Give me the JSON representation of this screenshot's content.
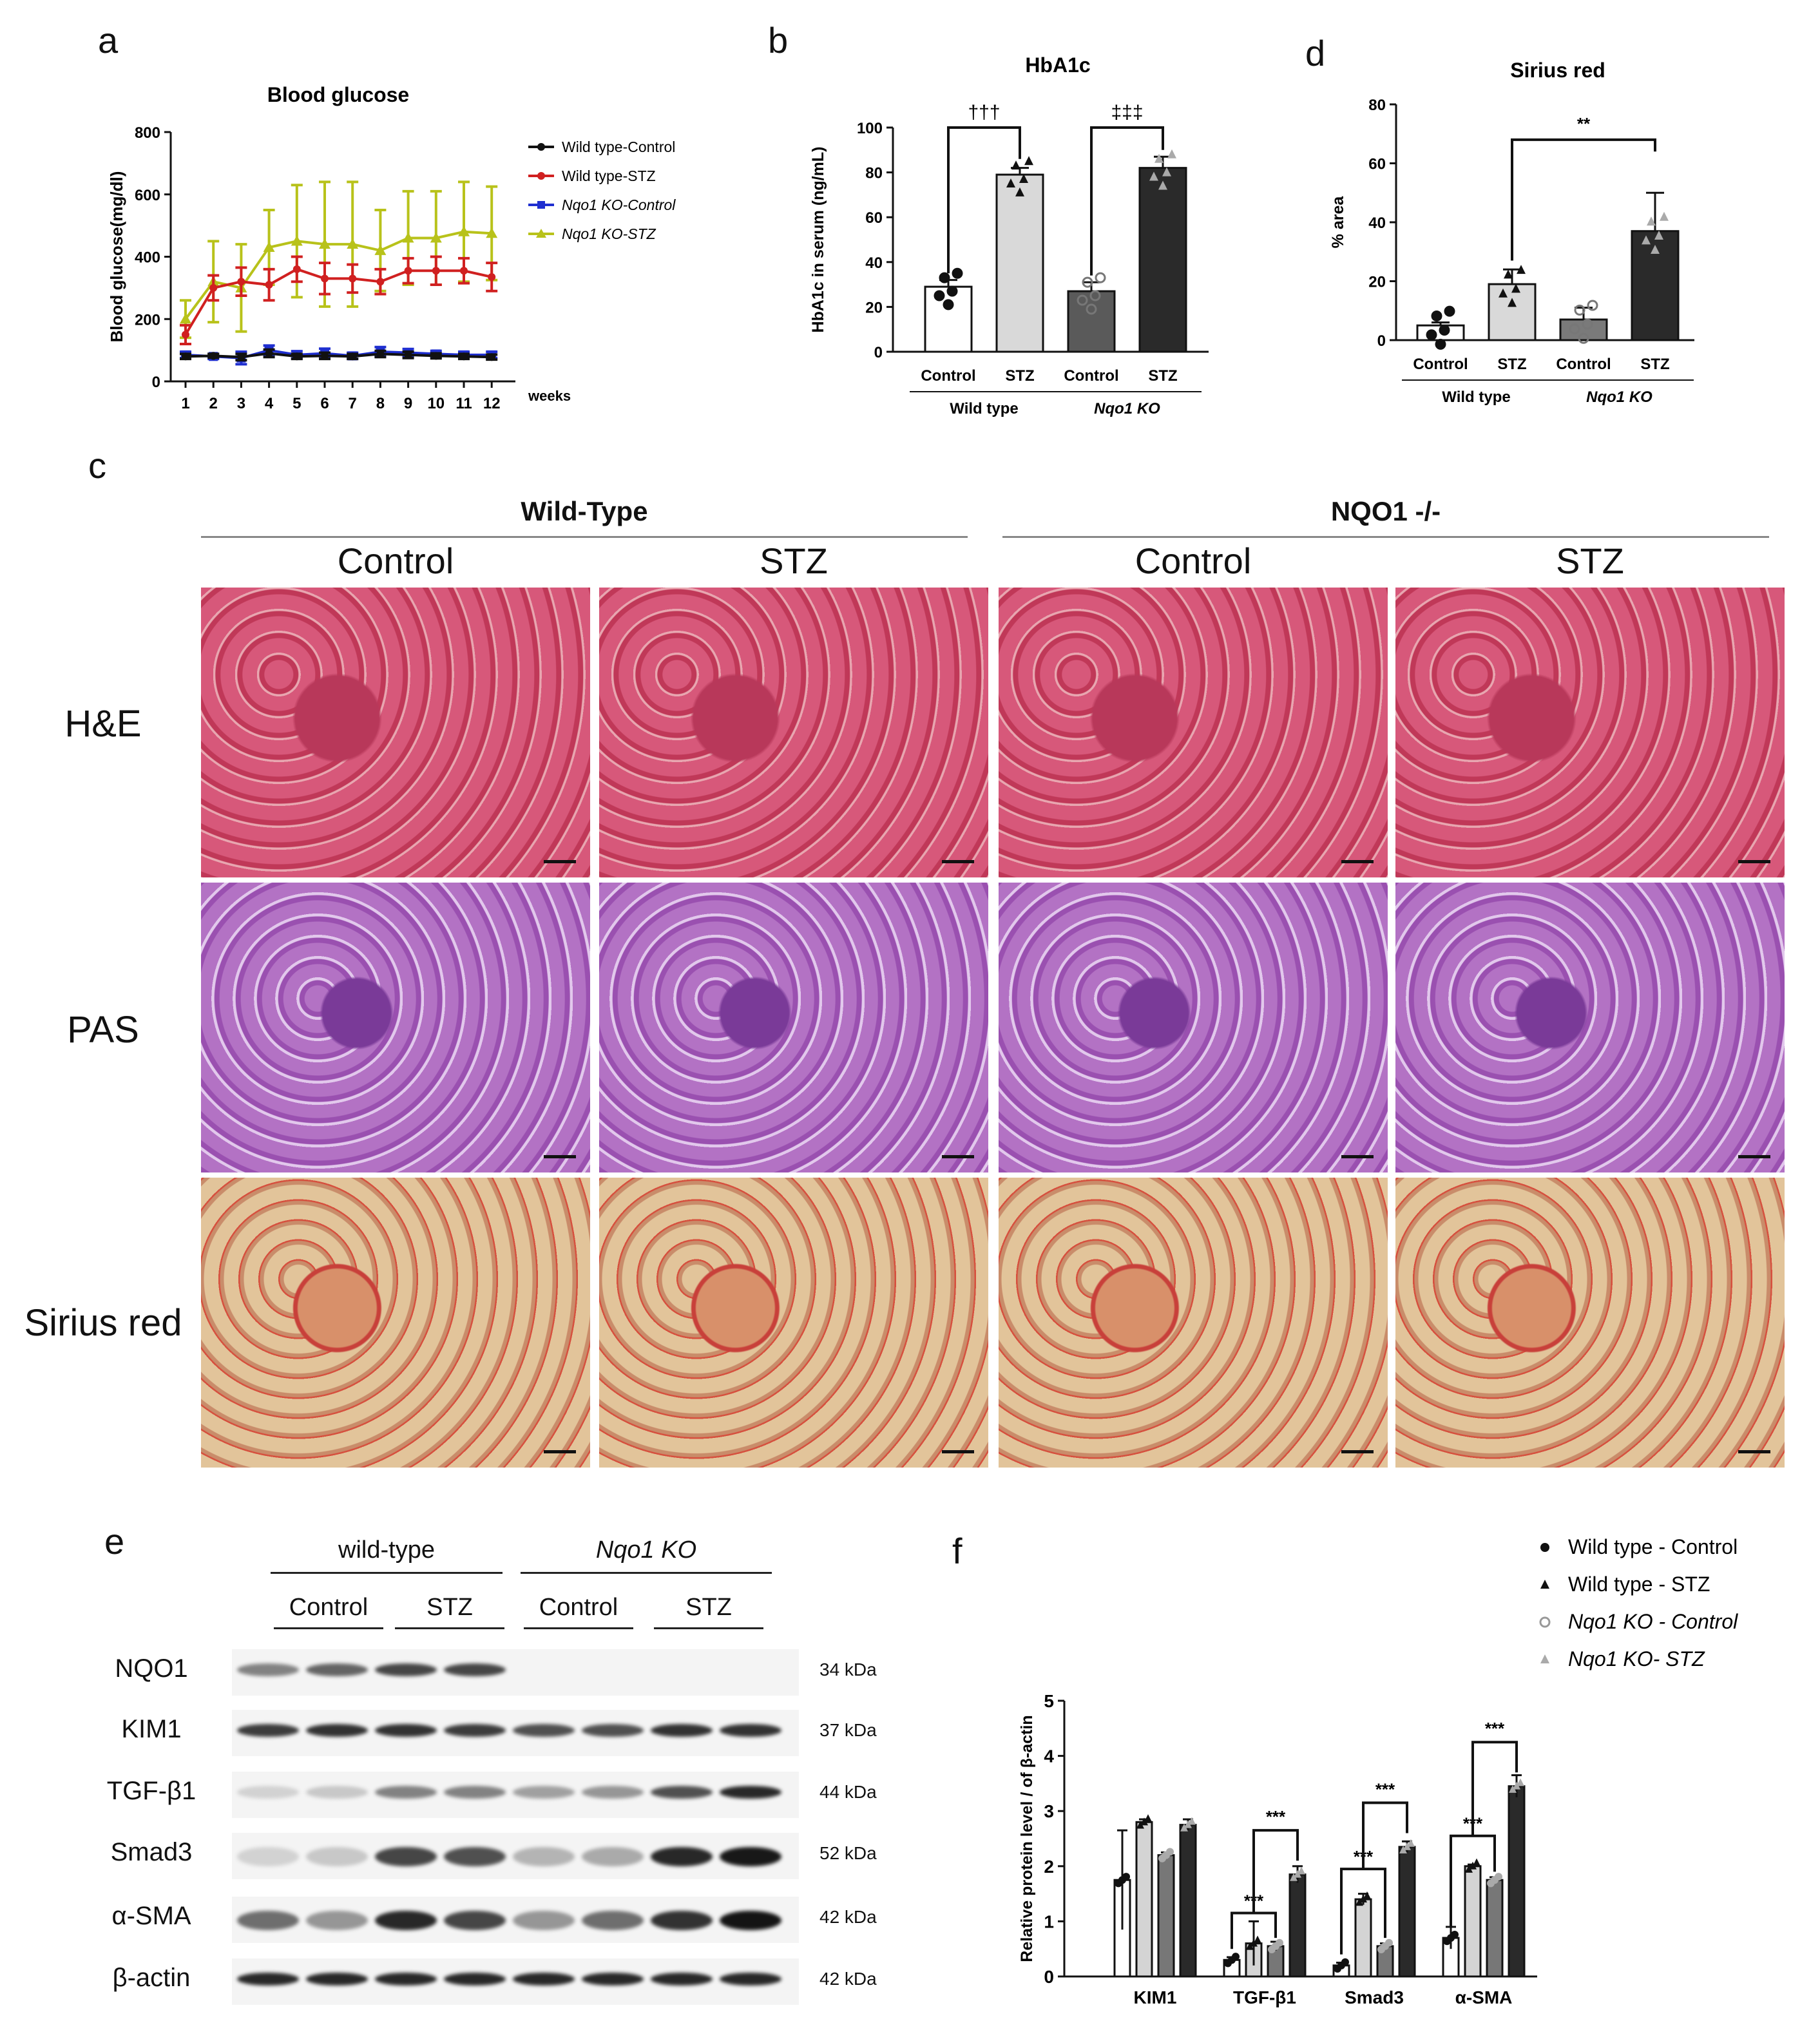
{
  "panels": {
    "a": "a",
    "b": "b",
    "c": "c",
    "d": "d",
    "e": "e",
    "f": "f"
  },
  "chart_data": [
    {
      "id": "a",
      "type": "line",
      "title": "Blood glucose",
      "xlabel": "weeks",
      "ylabel": "Blood glucose(mg/dl)",
      "x": [
        1,
        2,
        3,
        4,
        5,
        6,
        7,
        8,
        9,
        10,
        11,
        12
      ],
      "ylim": [
        0,
        800
      ],
      "yticks": [
        0,
        200,
        400,
        600,
        800
      ],
      "series": [
        {
          "name": "Wild type-Control",
          "color": "#111111",
          "values": [
            80,
            82,
            78,
            90,
            80,
            82,
            80,
            88,
            85,
            82,
            80,
            78
          ],
          "err": [
            8,
            6,
            10,
            12,
            8,
            10,
            8,
            10,
            10,
            8,
            8,
            8
          ]
        },
        {
          "name": "Wild type-STZ",
          "color": "#d02020",
          "values": [
            150,
            300,
            320,
            310,
            360,
            330,
            330,
            320,
            355,
            355,
            355,
            335
          ],
          "err": [
            30,
            40,
            45,
            50,
            40,
            50,
            45,
            40,
            40,
            45,
            40,
            45
          ]
        },
        {
          "name": "Nqo1 KO-Control",
          "color": "#1f2fd0",
          "values": [
            85,
            80,
            75,
            100,
            85,
            90,
            82,
            95,
            92,
            88,
            85,
            85
          ],
          "err": [
            10,
            8,
            20,
            15,
            12,
            15,
            10,
            15,
            12,
            10,
            10,
            10
          ]
        },
        {
          "name": "Nqo1 KO-STZ",
          "color": "#b8c21a",
          "values": [
            200,
            320,
            300,
            430,
            450,
            440,
            440,
            420,
            460,
            460,
            480,
            475
          ],
          "err": [
            60,
            130,
            140,
            120,
            180,
            200,
            200,
            130,
            150,
            150,
            160,
            150
          ]
        }
      ]
    },
    {
      "id": "b",
      "type": "bar",
      "title": "HbA1c",
      "ylabel": "HbA1c in serum (ng/mL)",
      "ylim": [
        0,
        100
      ],
      "yticks": [
        0,
        20,
        40,
        60,
        80,
        100
      ],
      "categories": [
        "Control",
        "STZ",
        "Control",
        "STZ"
      ],
      "groups": [
        "Wild type",
        "Nqo1 KO"
      ],
      "values": [
        29,
        79,
        27,
        82
      ],
      "err": [
        3,
        3,
        4,
        5
      ],
      "colors": [
        "#ffffff",
        "#d9d9d9",
        "#5a5a5a",
        "#2a2a2a"
      ],
      "annotations": [
        "†††",
        "‡‡‡"
      ]
    },
    {
      "id": "d",
      "type": "bar",
      "title": "Sirius red",
      "ylabel": "% area",
      "ylim": [
        0,
        80
      ],
      "yticks": [
        0,
        20,
        40,
        60,
        80
      ],
      "categories": [
        "Control",
        "STZ",
        "Control",
        "STZ"
      ],
      "groups": [
        "Wild type",
        "Nqo1 KO"
      ],
      "values": [
        5,
        19,
        7,
        37
      ],
      "err": [
        1,
        5,
        4,
        13
      ],
      "colors": [
        "#ffffff",
        "#d9d9d9",
        "#7a7a7a",
        "#2a2a2a"
      ],
      "annotations": [
        "**"
      ]
    },
    {
      "id": "f",
      "type": "bar",
      "ylabel": "Relative protein level / of β-actin",
      "ylim": [
        0,
        5
      ],
      "yticks": [
        0,
        1,
        2,
        3,
        4,
        5
      ],
      "categories": [
        "KIM1",
        "TGF-β1",
        "Smad3",
        "α-SMA"
      ],
      "series": [
        {
          "name": "Wild type - Control",
          "values": [
            1.75,
            0.3,
            0.2,
            0.7
          ],
          "err": [
            0.9,
            0.05,
            0.05,
            0.2
          ]
        },
        {
          "name": "Wild type - STZ",
          "values": [
            2.8,
            0.6,
            1.4,
            2.0
          ],
          "err": [
            0.05,
            0.4,
            0.1,
            0.03
          ]
        },
        {
          "name": "Nqo1 KO - Control",
          "values": [
            2.2,
            0.55,
            0.55,
            1.75
          ],
          "err": [
            0.05,
            0.08,
            0.05,
            0.05
          ]
        },
        {
          "name": "Nqo1 KO- STZ",
          "values": [
            2.75,
            1.85,
            2.35,
            3.45
          ],
          "err": [
            0.1,
            0.15,
            0.1,
            0.2
          ]
        }
      ],
      "annotations": [
        "***",
        "***",
        "***",
        "***",
        "***",
        "***"
      ]
    }
  ],
  "legend_b_d": {
    "control": "Control",
    "stz": "STZ",
    "wt": "Wild type",
    "ko": "Nqo1 KO"
  },
  "histology": {
    "group_wt": "Wild-Type",
    "group_ko": "NQO1 -/-",
    "col_labels": [
      "Control",
      "STZ",
      "Control",
      "STZ"
    ],
    "row_labels": [
      "H&E",
      "PAS",
      "Sirius red"
    ],
    "colors": {
      "he": "#c8405e",
      "pas": "#a860b8",
      "sr": "#d9b486"
    }
  },
  "blot": {
    "group_wt": "wild-type",
    "group_ko": "Nqo1 KO",
    "cond": [
      "Control",
      "STZ",
      "Control",
      "STZ"
    ],
    "rows": [
      {
        "name": "NQO1",
        "kda": "34 kDa"
      },
      {
        "name": "KIM1",
        "kda": "37 kDa"
      },
      {
        "name": "TGF-β1",
        "kda": "44 kDa"
      },
      {
        "name": "Smad3",
        "kda": "52 kDa"
      },
      {
        "name": "α-SMA",
        "kda": "42 kDa"
      },
      {
        "name": "β-actin",
        "kda": "42 kDa"
      }
    ]
  }
}
